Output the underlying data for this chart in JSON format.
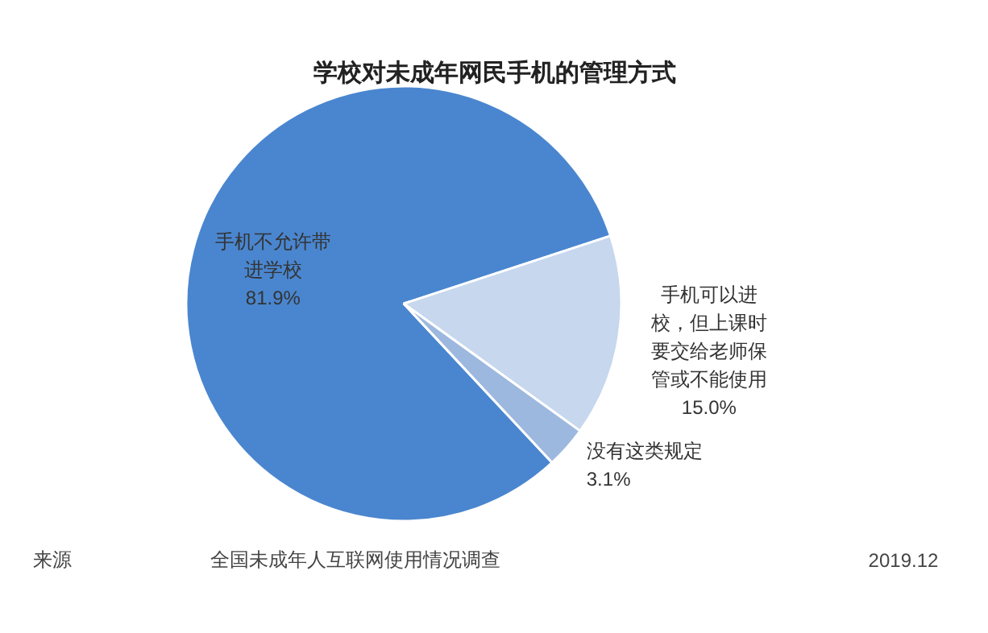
{
  "chart_data": {
    "type": "pie",
    "title": "学校对未成年网民手机的管理方式",
    "categories": [
      "手机不允许带进学校",
      "手机可以进校，但上课时要交给老师保管或不能使用",
      "没有这类规定"
    ],
    "values": [
      81.9,
      15.0,
      3.1
    ],
    "value_labels": [
      "81.9%",
      "15.0%",
      "3.1%"
    ],
    "colors": [
      "#4a86cf",
      "#c6d7ee",
      "#9db8de"
    ],
    "annotations": [
      "来源",
      "全国未成年人互联网使用情况调查",
      "2019.12"
    ]
  }
}
